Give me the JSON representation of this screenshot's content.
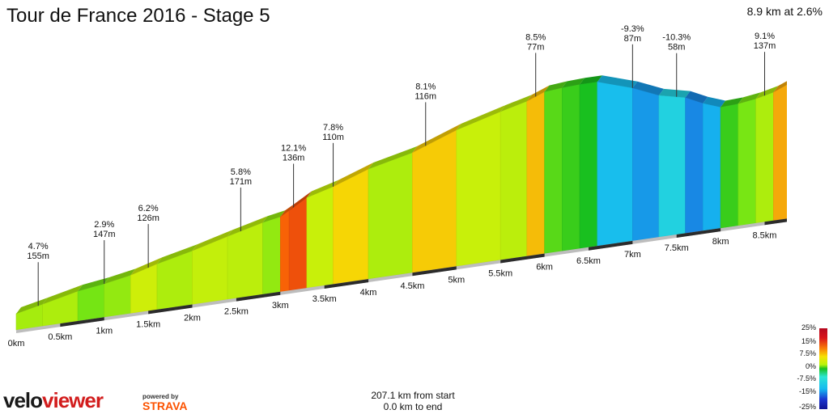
{
  "title": "Tour de France 2016 - Stage 5",
  "summary": "8.9 km at 2.6%",
  "footer": {
    "from_start": "207.1 km from start",
    "to_end": "0.0 km to end"
  },
  "logo": {
    "part1": "velo",
    "part2": "viewer",
    "powered_by": "powered by",
    "strava": "STRAVA"
  },
  "legend": {
    "ticks": [
      "25%",
      "15%",
      "7.5%",
      "0%",
      "-7.5%",
      "-15%",
      "-25%"
    ],
    "colors": {
      "max": "#b5071f",
      "steep": "#f97e06",
      "moderate": "#f6e104",
      "flat": "#19c01f",
      "down": "#2ce5d4",
      "steep_down": "#1b35d0",
      "min": "#101494"
    }
  },
  "chart_data": {
    "type": "area",
    "title": "Tour de France 2016 - Stage 5",
    "x_unit": "km",
    "x_ticks": [
      "0km",
      "0.5km",
      "1km",
      "1.5km",
      "2km",
      "2.5km",
      "3km",
      "3.5km",
      "4km",
      "4.5km",
      "5km",
      "5.5km",
      "6km",
      "6.5km",
      "7km",
      "7.5km",
      "8km",
      "8.5km"
    ],
    "x_tick_values": [
      0,
      0.5,
      1,
      1.5,
      2,
      2.5,
      3,
      3.5,
      4,
      4.5,
      5,
      5.5,
      6,
      6.5,
      7,
      7.5,
      8,
      8.5
    ],
    "distance_km": 8.9,
    "profile_x": [
      0,
      0.3,
      0.7,
      1.0,
      1.3,
      1.6,
      2.0,
      2.4,
      2.8,
      3.0,
      3.1,
      3.3,
      3.6,
      4.0,
      4.5,
      5.0,
      5.5,
      5.8,
      6.0,
      6.2,
      6.4,
      6.6,
      7.0,
      7.3,
      7.6,
      7.8,
      8.0,
      8.2,
      8.4,
      8.6,
      8.9
    ],
    "profile_slope": [
      4.7,
      5.0,
      2.9,
      4.0,
      6.2,
      5.0,
      5.8,
      5.5,
      4.0,
      12.1,
      13.0,
      6.0,
      7.8,
      5.0,
      8.1,
      6.0,
      5.5,
      8.5,
      2.0,
      1.0,
      0.0,
      -7.0,
      -9.3,
      -5.0,
      -10.3,
      -8.0,
      1.0,
      3.0,
      5.0,
      9.1,
      6.0
    ],
    "annotations": [
      {
        "x": 0.25,
        "grade": "4.7%",
        "length": "155m"
      },
      {
        "x": 1.0,
        "grade": "2.9%",
        "length": "147m"
      },
      {
        "x": 1.5,
        "grade": "6.2%",
        "length": "126m"
      },
      {
        "x": 2.55,
        "grade": "5.8%",
        "length": "171m"
      },
      {
        "x": 3.15,
        "grade": "12.1%",
        "length": "136m"
      },
      {
        "x": 3.6,
        "grade": "7.8%",
        "length": "110m"
      },
      {
        "x": 4.65,
        "grade": "8.1%",
        "length": "116m"
      },
      {
        "x": 5.9,
        "grade": "8.5%",
        "length": "77m"
      },
      {
        "x": 7.0,
        "grade": "-9.3%",
        "length": "87m"
      },
      {
        "x": 7.5,
        "grade": "-10.3%",
        "length": "58m"
      },
      {
        "x": 8.5,
        "grade": "9.1%",
        "length": "137m"
      }
    ]
  }
}
